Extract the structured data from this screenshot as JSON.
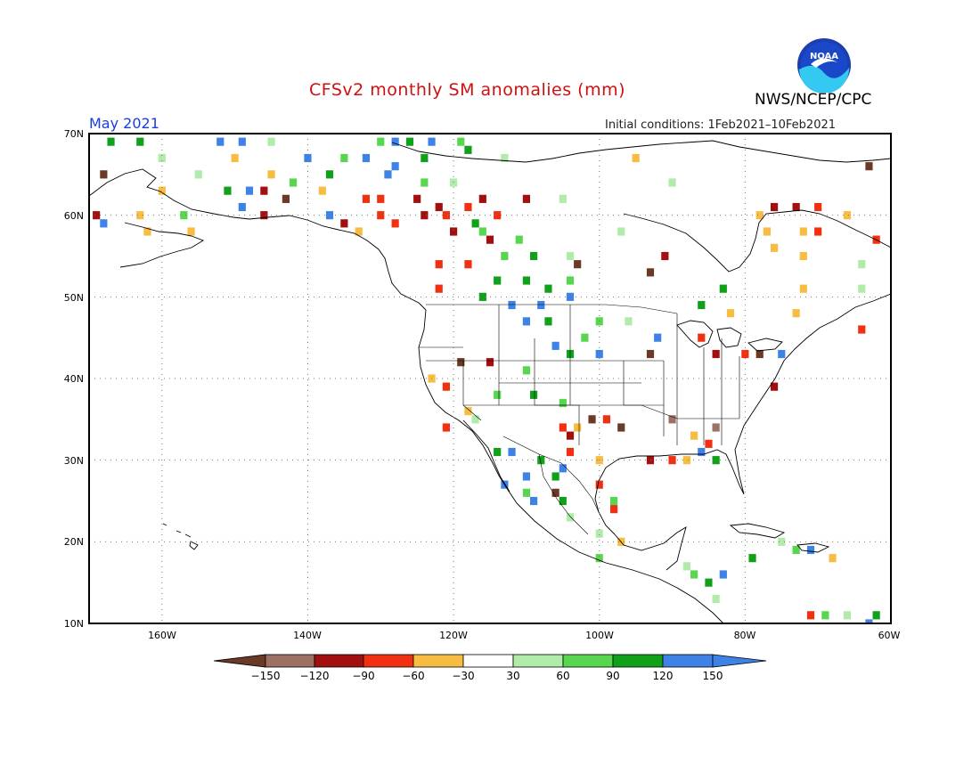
{
  "header": {
    "title": "CFSv2 monthly SM anomalies (mm)",
    "agency": "NWS/NCEP/CPC",
    "target_month": "May 2021",
    "initial_conditions": "Initial conditions: 1Feb2021–10Feb2021",
    "logo_text": "NOAA"
  },
  "map": {
    "lon_labels": [
      "160W",
      "140W",
      "120W",
      "100W",
      "80W",
      "60W"
    ],
    "lat_labels": [
      "70N",
      "60N",
      "50N",
      "40N",
      "30N",
      "20N",
      "10N"
    ],
    "lon_range": [
      -170,
      -60
    ],
    "lat_range": [
      10,
      70
    ],
    "grid": "dotted"
  },
  "colorbar": {
    "labels": [
      "−150",
      "−120",
      "−90",
      "−60",
      "−30",
      "30",
      "60",
      "90",
      "120",
      "150"
    ],
    "colors": [
      "#6b3a26",
      "#9c7164",
      "#a10f0f",
      "#f03010",
      "#f7bc42",
      "#ffffff",
      "#b0ebaa",
      "#58d64f",
      "#10a01a",
      "#3f82e6",
      "#3f82e6"
    ]
  },
  "anomaly_cells": [
    [
      "#10a01a",
      -167,
      69
    ],
    [
      "#10a01a",
      -163,
      69
    ],
    [
      "#3f82e6",
      -152,
      69
    ],
    [
      "#3f82e6",
      -149,
      69
    ],
    [
      "#b0ebaa",
      -145,
      69
    ],
    [
      "#58d64f",
      -130,
      69
    ],
    [
      "#3f82e6",
      -128,
      69
    ],
    [
      "#10a01a",
      -126,
      69
    ],
    [
      "#3f82e6",
      -123,
      69
    ],
    [
      "#58d64f",
      -119,
      69
    ],
    [
      "#10a01a",
      -118,
      68
    ],
    [
      "#b0ebaa",
      -160,
      67
    ],
    [
      "#f7bc42",
      -150,
      67
    ],
    [
      "#3f82e6",
      -140,
      67
    ],
    [
      "#58d64f",
      -135,
      67
    ],
    [
      "#3f82e6",
      -132,
      67
    ],
    [
      "#3f82e6",
      -128,
      66
    ],
    [
      "#10a01a",
      -124,
      67
    ],
    [
      "#b0ebaa",
      -113,
      67
    ],
    [
      "#f7bc42",
      -95,
      67
    ],
    [
      "#6b3a26",
      -168,
      65
    ],
    [
      "#b0ebaa",
      -155,
      65
    ],
    [
      "#f7bc42",
      -145,
      65
    ],
    [
      "#58d64f",
      -142,
      64
    ],
    [
      "#10a01a",
      -137,
      65
    ],
    [
      "#3f82e6",
      -129,
      65
    ],
    [
      "#58d64f",
      -124,
      64
    ],
    [
      "#b0ebaa",
      -120,
      64
    ],
    [
      "#b0ebaa",
      -90,
      64
    ],
    [
      "#6b3a26",
      -63,
      66
    ],
    [
      "#f7bc42",
      -160,
      63
    ],
    [
      "#10a01a",
      -151,
      63
    ],
    [
      "#3f82e6",
      -148,
      63
    ],
    [
      "#a10f0f",
      -146,
      63
    ],
    [
      "#6b3a26",
      -143,
      62
    ],
    [
      "#f7bc42",
      -138,
      63
    ],
    [
      "#f03010",
      -132,
      62
    ],
    [
      "#f03010",
      -130,
      62
    ],
    [
      "#a10f0f",
      -125,
      62
    ],
    [
      "#a10f0f",
      -122,
      61
    ],
    [
      "#f03010",
      -118,
      61
    ],
    [
      "#a10f0f",
      -116,
      62
    ],
    [
      "#b0ebaa",
      -105,
      62
    ],
    [
      "#a10f0f",
      -169,
      60
    ],
    [
      "#3f82e6",
      -168,
      59
    ],
    [
      "#f7bc42",
      -163,
      60
    ],
    [
      "#58d64f",
      -157,
      60
    ],
    [
      "#3f82e6",
      -149,
      61
    ],
    [
      "#a10f0f",
      -146,
      60
    ],
    [
      "#3f82e6",
      -137,
      60
    ],
    [
      "#a10f0f",
      -135,
      59
    ],
    [
      "#f03010",
      -130,
      60
    ],
    [
      "#f03010",
      -128,
      59
    ],
    [
      "#a10f0f",
      -124,
      60
    ],
    [
      "#f03010",
      -121,
      60
    ],
    [
      "#10a01a",
      -117,
      59
    ],
    [
      "#f03010",
      -114,
      60
    ],
    [
      "#a10f0f",
      -110,
      62
    ],
    [
      "#f7bc42",
      -78,
      60
    ],
    [
      "#a10f0f",
      -76,
      61
    ],
    [
      "#a10f0f",
      -73,
      61
    ],
    [
      "#f03010",
      -70,
      61
    ],
    [
      "#f7bc42",
      -66,
      60
    ],
    [
      "#f7bc42",
      -162,
      58
    ],
    [
      "#f7bc42",
      -156,
      58
    ],
    [
      "#f7bc42",
      -133,
      58
    ],
    [
      "#a10f0f",
      -120,
      58
    ],
    [
      "#58d64f",
      -116,
      58
    ],
    [
      "#a10f0f",
      -115,
      57
    ],
    [
      "#58d64f",
      -111,
      57
    ],
    [
      "#b0ebaa",
      -97,
      58
    ],
    [
      "#f03010",
      -70,
      58
    ],
    [
      "#f7bc42",
      -77,
      58
    ],
    [
      "#f7bc42",
      -72,
      58
    ],
    [
      "#f03010",
      -62,
      57
    ],
    [
      "#58d64f",
      -113,
      55
    ],
    [
      "#10a01a",
      -109,
      55
    ],
    [
      "#b0ebaa",
      -104,
      55
    ],
    [
      "#6b3a26",
      -103,
      54
    ],
    [
      "#a10f0f",
      -91,
      55
    ],
    [
      "#f03010",
      -118,
      54
    ],
    [
      "#f03010",
      -122,
      54
    ],
    [
      "#f7bc42",
      -76,
      56
    ],
    [
      "#f7bc42",
      -72,
      55
    ],
    [
      "#b0ebaa",
      -64,
      54
    ],
    [
      "#10a01a",
      -114,
      52
    ],
    [
      "#10a01a",
      -110,
      52
    ],
    [
      "#10a01a",
      -107,
      51
    ],
    [
      "#58d64f",
      -104,
      52
    ],
    [
      "#3f82e6",
      -104,
      50
    ],
    [
      "#3f82e6",
      -108,
      49
    ],
    [
      "#3f82e6",
      -112,
      49
    ],
    [
      "#10a01a",
      -116,
      50
    ],
    [
      "#f03010",
      -122,
      51
    ],
    [
      "#6b3a26",
      -93,
      53
    ],
    [
      "#10a01a",
      -83,
      51
    ],
    [
      "#f7bc42",
      -72,
      51
    ],
    [
      "#b0ebaa",
      -64,
      51
    ],
    [
      "#3f82e6",
      -110,
      47
    ],
    [
      "#10a01a",
      -107,
      47
    ],
    [
      "#58d64f",
      -100,
      47
    ],
    [
      "#b0ebaa",
      -96,
      47
    ],
    [
      "#10a01a",
      -86,
      49
    ],
    [
      "#58d64f",
      -102,
      45
    ],
    [
      "#3f82e6",
      -92,
      45
    ],
    [
      "#f03010",
      -86,
      45
    ],
    [
      "#f7bc42",
      -73,
      48
    ],
    [
      "#f03010",
      -64,
      46
    ],
    [
      "#f7bc42",
      -82,
      48
    ],
    [
      "#3f82e6",
      -106,
      44
    ],
    [
      "#10a01a",
      -104,
      43
    ],
    [
      "#3f82e6",
      -100,
      43
    ],
    [
      "#6b3a26",
      -93,
      43
    ],
    [
      "#a10f0f",
      -84,
      43
    ],
    [
      "#f03010",
      -80,
      43
    ],
    [
      "#6b3a26",
      -78,
      43
    ],
    [
      "#3f82e6",
      -75,
      43
    ],
    [
      "#6b3a26",
      -119,
      42
    ],
    [
      "#a10f0f",
      -115,
      42
    ],
    [
      "#58d64f",
      -110,
      41
    ],
    [
      "#f7bc42",
      -123,
      40
    ],
    [
      "#f03010",
      -121,
      39
    ],
    [
      "#a10f0f",
      -76,
      39
    ],
    [
      "#58d64f",
      -114,
      38
    ],
    [
      "#10a01a",
      -109,
      38
    ],
    [
      "#58d64f",
      -105,
      37
    ],
    [
      "#6b3a26",
      -101,
      35
    ],
    [
      "#f7bc42",
      -103,
      34
    ],
    [
      "#f03010",
      -105,
      34
    ],
    [
      "#a10f0f",
      -104,
      33
    ],
    [
      "#f03010",
      -99,
      35
    ],
    [
      "#6b3a26",
      -97,
      34
    ],
    [
      "#f7bc42",
      -118,
      36
    ],
    [
      "#b0ebaa",
      -117,
      35
    ],
    [
      "#f03010",
      -121,
      34
    ],
    [
      "#9c7164",
      -90,
      35
    ],
    [
      "#f7bc42",
      -87,
      33
    ],
    [
      "#9c7164",
      -84,
      34
    ],
    [
      "#10a01a",
      -114,
      31
    ],
    [
      "#3f82e6",
      -112,
      31
    ],
    [
      "#10a01a",
      -108,
      30
    ],
    [
      "#3f82e6",
      -110,
      28
    ],
    [
      "#10a01a",
      -106,
      28
    ],
    [
      "#3f82e6",
      -105,
      29
    ],
    [
      "#f03010",
      -104,
      31
    ],
    [
      "#f7bc42",
      -100,
      30
    ],
    [
      "#a10f0f",
      -93,
      30
    ],
    [
      "#f03010",
      -90,
      30
    ],
    [
      "#f7bc42",
      -88,
      30
    ],
    [
      "#3f82e6",
      -86,
      31
    ],
    [
      "#10a01a",
      -84,
      30
    ],
    [
      "#f03010",
      -85,
      32
    ],
    [
      "#3f82e6",
      -113,
      27
    ],
    [
      "#58d64f",
      -110,
      26
    ],
    [
      "#3f82e6",
      -109,
      25
    ],
    [
      "#10a01a",
      -105,
      25
    ],
    [
      "#6b3a26",
      -106,
      26
    ],
    [
      "#f03010",
      -100,
      27
    ],
    [
      "#58d64f",
      -98,
      25
    ],
    [
      "#f03010",
      -98,
      24
    ],
    [
      "#b0ebaa",
      -104,
      23
    ],
    [
      "#f7bc42",
      -97,
      20
    ],
    [
      "#b0ebaa",
      -100,
      21
    ],
    [
      "#58d64f",
      -100,
      18
    ],
    [
      "#b0ebaa",
      -88,
      17
    ],
    [
      "#58d64f",
      -87,
      16
    ],
    [
      "#10a01a",
      -85,
      15
    ],
    [
      "#b0ebaa",
      -84,
      13
    ],
    [
      "#3f82e6",
      -83,
      16
    ],
    [
      "#10a01a",
      -79,
      18
    ],
    [
      "#b0ebaa",
      -75,
      20
    ],
    [
      "#58d64f",
      -73,
      19
    ],
    [
      "#3f82e6",
      -71,
      19
    ],
    [
      "#f7bc42",
      -68,
      18
    ],
    [
      "#f03010",
      -71,
      11
    ],
    [
      "#58d64f",
      -69,
      11
    ],
    [
      "#b0ebaa",
      -66,
      11
    ],
    [
      "#3f82e6",
      -63,
      10
    ],
    [
      "#10a01a",
      -62,
      11
    ]
  ]
}
